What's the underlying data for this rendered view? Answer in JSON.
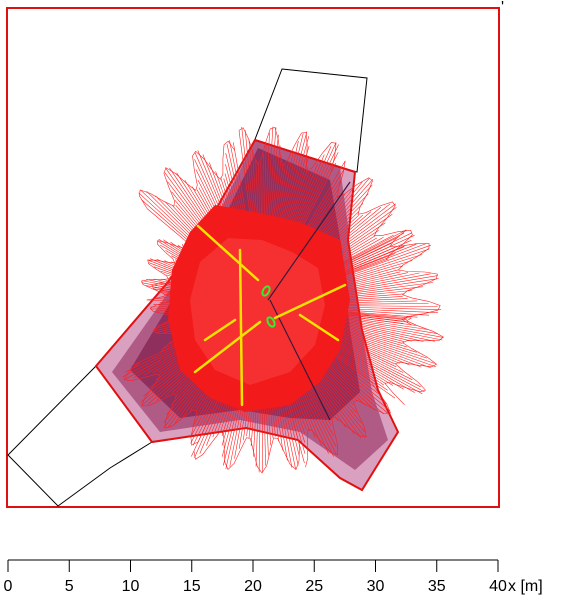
{
  "scale_bar": {
    "ticks": [
      "0",
      "5",
      "10",
      "15",
      "20",
      "25",
      "30",
      "35",
      "40"
    ],
    "unit_label": "x [m]"
  },
  "colors": {
    "frame": "#e01010",
    "outline": "#000000",
    "zone_light": "#d9a0c0",
    "zone_mid": "#b05a86",
    "zone_dark": "#8e2f5e",
    "red_core": "#f21a1a",
    "red_hatch": "#ff2020",
    "yellow_sweep": "#f3e400",
    "green_marker": "#33ee33",
    "dark_line": "#3a1a3a"
  },
  "icons": {
    "scale_bar": "horizontal-scale-ruler",
    "markers": "green-oval-markers"
  }
}
